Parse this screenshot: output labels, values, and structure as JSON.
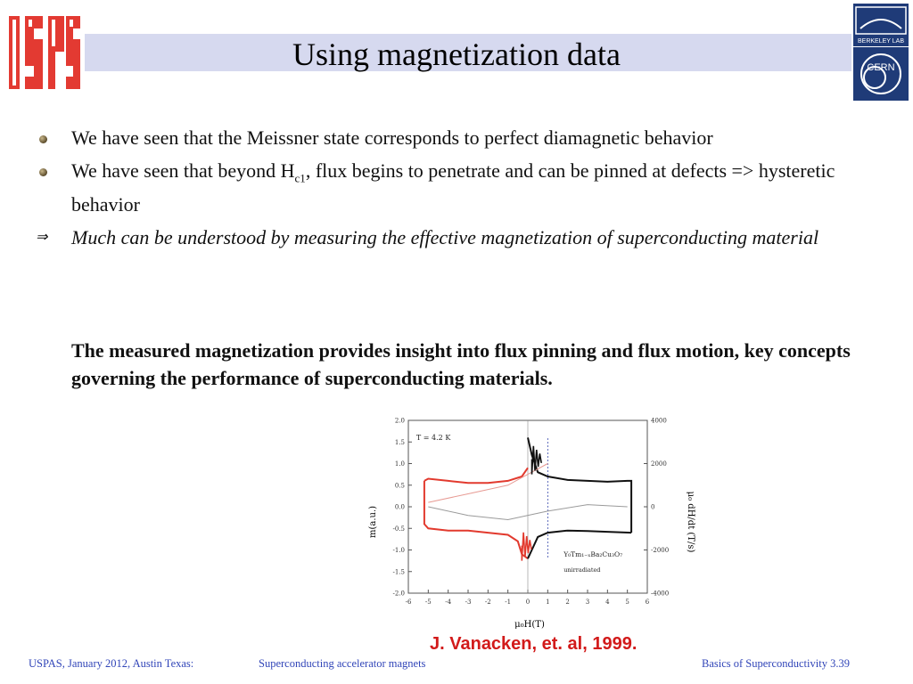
{
  "slide": {
    "title": "Using magnetization data",
    "logos": {
      "left": "USPAS",
      "right_top": "BERKELEY LAB",
      "right_bottom": "CERN"
    },
    "bullets": [
      {
        "marker": "bullet-icon",
        "text": "We have seen that the Meissner state corresponds to perfect diamagnetic behavior"
      },
      {
        "marker": "bullet-icon",
        "pre": "We have seen that beyond H",
        "sub": "c1",
        "post": ", flux begins to penetrate and can be pinned at defects => hysteretic behavior"
      },
      {
        "marker": "implies-arrow-icon",
        "symbol": "⇒",
        "text": "Much can be understood by measuring the effective magnetization of superconducting material"
      }
    ],
    "bold_paragraph": "The measured magnetization provides insight into flux pinning and flux motion, key concepts governing the performance of superconducting materials.",
    "citation": "J. Vanacken, et. al, 1999.",
    "footer": {
      "left": "USPAS, January 2012, Austin Texas:",
      "middle": "Superconducting accelerator magnets",
      "right": "Basics of Superconductivity 3.39"
    }
  },
  "chart_data": {
    "type": "line",
    "xlabel": "μ₀H(T)",
    "ylabel": "m(a.u.)",
    "y2label": "μ₀ dH/dt (T/s)",
    "xlim": [
      -6,
      6
    ],
    "ylim": [
      -2.0,
      2.0
    ],
    "y2lim": [
      -4000,
      4000
    ],
    "x_ticks": [
      "-6",
      "-5",
      "-4",
      "-3",
      "-2",
      "-1",
      "0",
      "1",
      "2",
      "3",
      "4",
      "5",
      "6"
    ],
    "y_ticks": [
      "2.0",
      "1.5",
      "1.0",
      "0.5",
      "0.0",
      "-0.5",
      "-1.0",
      "-1.5",
      "-2.0"
    ],
    "y2_ticks": [
      "4000",
      "2000",
      "0",
      "-2000",
      "-4000"
    ],
    "annotations": [
      "T = 4.2 K",
      "Y₀Tm₁₋ₓBa₂Cu₃O₇",
      "unirradiated"
    ],
    "colors": {
      "red": "#e23a2e",
      "black": "#111111",
      "gray": "#9a9a9a",
      "pink": "#e79a93"
    },
    "series": [
      {
        "color": "red",
        "x": [
          -5.2,
          -5.0,
          -4,
          -3,
          -2,
          -1,
          -0.3,
          0
        ],
        "y": [
          0.6,
          0.65,
          0.6,
          0.55,
          0.55,
          0.6,
          0.7,
          0.9
        ]
      },
      {
        "color": "red",
        "x": [
          -5.2,
          -5.2,
          -5,
          -4,
          -3,
          -2,
          -1,
          -0.5,
          -0.3,
          0
        ],
        "y": [
          0.6,
          -0.4,
          -0.5,
          -0.55,
          -0.55,
          -0.6,
          -0.65,
          -0.8,
          -1.1,
          -1.2
        ]
      },
      {
        "color": "black",
        "x": [
          0,
          0.2,
          0.5,
          1,
          2,
          3,
          4,
          5,
          5.2,
          5.2
        ],
        "y": [
          1.6,
          1.2,
          0.8,
          0.7,
          0.62,
          0.6,
          0.58,
          0.6,
          0.6,
          -0.6
        ]
      },
      {
        "color": "black",
        "x": [
          5.2,
          4,
          3,
          2,
          1,
          0.5,
          0.2,
          0
        ],
        "y": [
          -0.6,
          -0.58,
          -0.56,
          -0.55,
          -0.6,
          -0.7,
          -1.0,
          -1.2
        ]
      },
      {
        "color": "pink",
        "x": [
          -5,
          -3,
          -1,
          0,
          1
        ],
        "y": [
          0.1,
          0.3,
          0.5,
          0.75,
          1.0
        ]
      },
      {
        "color": "gray",
        "x": [
          -5,
          -3,
          -1,
          1,
          3,
          5
        ],
        "y": [
          0.0,
          -0.2,
          -0.3,
          -0.1,
          0.05,
          0.0
        ]
      }
    ]
  }
}
